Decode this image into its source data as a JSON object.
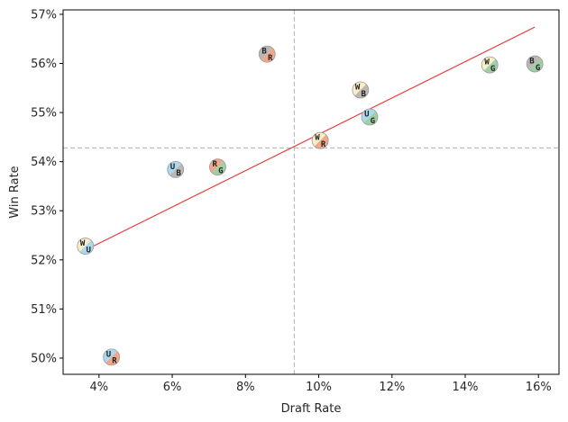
{
  "chart_data": {
    "type": "scatter",
    "title": "",
    "xlabel": "Draft Rate",
    "ylabel": "Win Rate",
    "xlim": [
      3.02,
      16.56
    ],
    "ylim": [
      49.67,
      57.09
    ],
    "x_ticks": [
      4,
      6,
      8,
      10,
      12,
      14,
      16
    ],
    "x_tick_labels": [
      "4%",
      "6%",
      "8%",
      "10%",
      "12%",
      "14%",
      "16%"
    ],
    "y_ticks": [
      50,
      51,
      52,
      53,
      54,
      55,
      56,
      57
    ],
    "y_tick_labels": [
      "50%",
      "51%",
      "52%",
      "53%",
      "54%",
      "55%",
      "56%",
      "57%"
    ],
    "grid": false,
    "reference_lines": {
      "mean_draft_rate": 9.33,
      "mean_win_rate": 54.28,
      "color": "#b0b0b0"
    },
    "trend_line": {
      "color": "#ee3333",
      "x": [
        3.63,
        15.9
      ],
      "y": [
        52.2,
        56.74
      ]
    },
    "color_map": {
      "W": "#f8efc6",
      "U": "#a9d8ef",
      "B": "#bdb6b1",
      "R": "#f0a88a",
      "G": "#9ecfa6"
    },
    "points": [
      {
        "label": "WU",
        "c1": "W",
        "c2": "U",
        "x": 3.63,
        "y": 52.28
      },
      {
        "label": "UR",
        "c1": "U",
        "c2": "R",
        "x": 4.34,
        "y": 50.02
      },
      {
        "label": "UB",
        "c1": "U",
        "c2": "B",
        "x": 6.09,
        "y": 53.84
      },
      {
        "label": "RG",
        "c1": "R",
        "c2": "G",
        "x": 7.24,
        "y": 53.89
      },
      {
        "label": "BR",
        "c1": "B",
        "c2": "R",
        "x": 8.59,
        "y": 56.19
      },
      {
        "label": "WR",
        "c1": "W",
        "c2": "R",
        "x": 10.04,
        "y": 54.43
      },
      {
        "label": "WB",
        "c1": "W",
        "c2": "B",
        "x": 11.14,
        "y": 55.46
      },
      {
        "label": "UG",
        "c1": "U",
        "c2": "G",
        "x": 11.39,
        "y": 54.91
      },
      {
        "label": "WG",
        "c1": "W",
        "c2": "G",
        "x": 14.67,
        "y": 55.97
      },
      {
        "label": "BG",
        "c1": "B",
        "c2": "G",
        "x": 15.9,
        "y": 55.99
      }
    ]
  }
}
